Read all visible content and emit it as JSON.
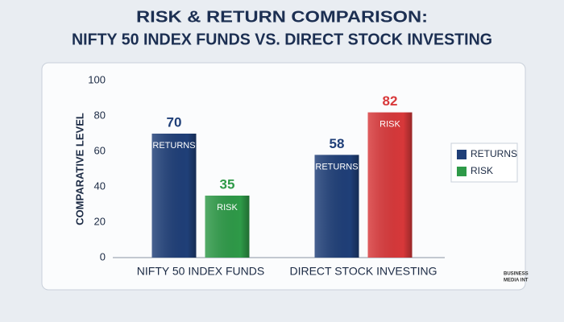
{
  "chart_data": {
    "type": "bar",
    "title": [
      "RISK & RETURN COMPARISON:",
      "NIFTY 50 INDEX FUNDS VS. DIRECT STOCK INVESTING"
    ],
    "y_label": "COMPARATIVE LEVEL",
    "categories": [
      "NIFTY 50 INDEX FUNDS",
      "DIRECT STOCK INVESTING"
    ],
    "series": [
      {
        "name": "RETURNS",
        "color": "#1f3f78",
        "values": [
          70,
          58
        ]
      },
      {
        "name": "RISK",
        "color": "#2e9a48",
        "colors": [
          "#2e9a48",
          "#d8383a"
        ],
        "values": [
          35,
          82
        ]
      }
    ],
    "ylim": [
      0,
      100
    ],
    "yticks": [
      0,
      20,
      40,
      60,
      80,
      100
    ],
    "grid": false,
    "legend": "right",
    "watermark": [
      "BUSINESS",
      "MEDIA INT"
    ]
  }
}
